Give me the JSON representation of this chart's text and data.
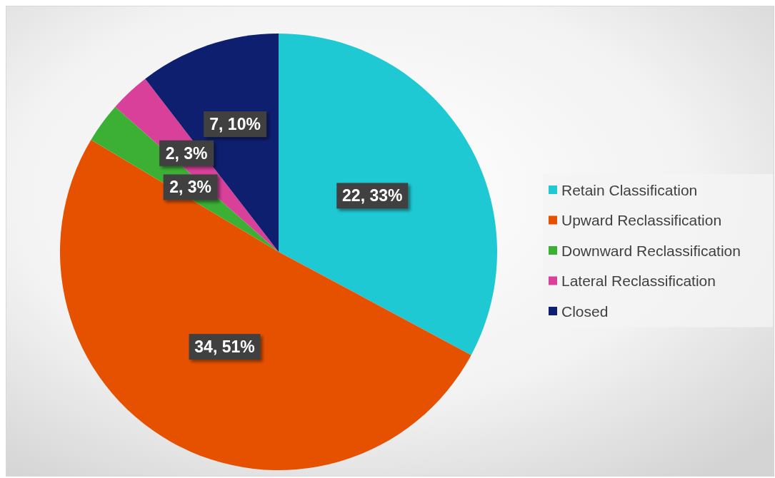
{
  "chart_data": {
    "type": "pie",
    "categories": [
      "Retain Classification",
      "Upward Reclassification",
      "Downward Reclassification",
      "Lateral Reclassification",
      "Closed"
    ],
    "values": [
      22,
      34,
      2,
      2,
      7
    ],
    "value_labels": [
      "22, 33%",
      "34, 51%",
      "2, 3%",
      "2, 3%",
      "7, 10%"
    ],
    "colors": [
      "#1ec9d4",
      "#e65100",
      "#3cb034",
      "#d9409a",
      "#0d1f6e"
    ],
    "legend": "right"
  }
}
